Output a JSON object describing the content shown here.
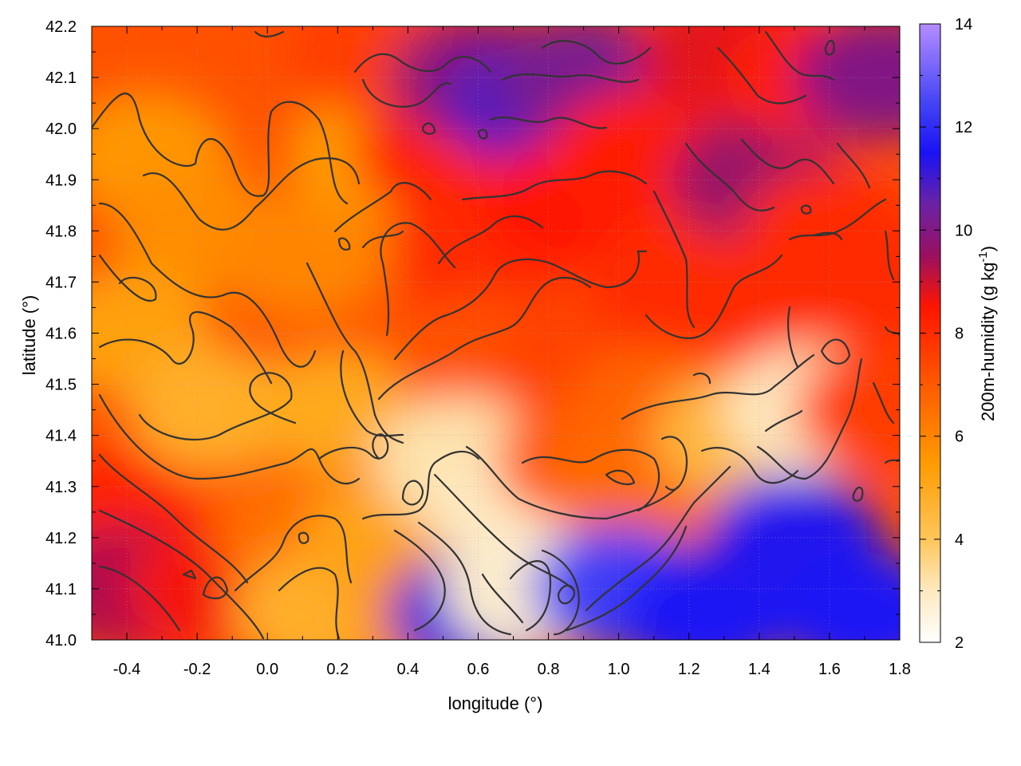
{
  "chart_data": {
    "type": "heatmap",
    "title": "",
    "xlabel": "longitude (°)",
    "ylabel": "latitude (°)",
    "colorbar_label": "200m-humidity (g kg",
    "colorbar_label_sup": "-1",
    "colorbar_label_end": ")",
    "xlim": [
      -0.5,
      1.8
    ],
    "ylim": [
      41.0,
      42.2
    ],
    "zlim": [
      2,
      14
    ],
    "xticks": [
      -0.4,
      -0.2,
      0.0,
      0.2,
      0.4,
      0.6,
      0.8,
      1.0,
      1.2,
      1.4,
      1.6,
      1.8
    ],
    "xtick_labels": [
      "-0.4",
      "-0.2",
      "0.0",
      "0.2",
      "0.4",
      "0.6",
      "0.8",
      "1.0",
      "1.2",
      "1.4",
      "1.6",
      "1.8"
    ],
    "yticks": [
      41.0,
      41.1,
      41.2,
      41.3,
      41.4,
      41.5,
      41.6,
      41.7,
      41.8,
      41.9,
      42.0,
      42.1,
      42.2
    ],
    "ytick_labels": [
      "41.0",
      "41.1",
      "41.2",
      "41.3",
      "41.4",
      "41.5",
      "41.6",
      "41.7",
      "41.8",
      "41.9",
      "42.0",
      "42.1",
      "42.2"
    ],
    "cbticks": [
      2,
      4,
      6,
      8,
      10,
      12,
      14
    ],
    "cbtick_labels": [
      "2",
      "4",
      "6",
      "8",
      "10",
      "12",
      "14"
    ],
    "grid": true,
    "colormap": [
      {
        "v": 2,
        "color": "#ffffff"
      },
      {
        "v": 3,
        "color": "#fde9c0"
      },
      {
        "v": 4,
        "color": "#ffc65a"
      },
      {
        "v": 5.5,
        "color": "#ff9a00"
      },
      {
        "v": 7,
        "color": "#ff5a00"
      },
      {
        "v": 8.5,
        "color": "#ff1500"
      },
      {
        "v": 9.5,
        "color": "#9a1060"
      },
      {
        "v": 10.5,
        "color": "#6a22a5"
      },
      {
        "v": 11.5,
        "color": "#1a12f5"
      },
      {
        "v": 12.5,
        "color": "#4646f5"
      },
      {
        "v": 14,
        "color": "#b58cff"
      }
    ],
    "field_regions": [
      {
        "lon": -0.35,
        "lat": 41.95,
        "value": 5.6
      },
      {
        "lon": -0.2,
        "lat": 41.8,
        "value": 5.8
      },
      {
        "lon": -0.4,
        "lat": 41.6,
        "value": 5.3
      },
      {
        "lon": -0.15,
        "lat": 41.45,
        "value": 4.8
      },
      {
        "lon": -0.45,
        "lat": 41.25,
        "value": 8.2
      },
      {
        "lon": -0.4,
        "lat": 41.1,
        "value": 9.3
      },
      {
        "lon": -0.15,
        "lat": 41.1,
        "value": 8.6
      },
      {
        "lon": 0.1,
        "lat": 41.2,
        "value": 6.5
      },
      {
        "lon": 0.15,
        "lat": 41.05,
        "value": 4.8
      },
      {
        "lon": 0.1,
        "lat": 41.75,
        "value": 6.0
      },
      {
        "lon": 0.2,
        "lat": 41.45,
        "value": 5.0
      },
      {
        "lon": 0.35,
        "lat": 41.2,
        "value": 5.2
      },
      {
        "lon": 0.3,
        "lat": 41.95,
        "value": 5.5
      },
      {
        "lon": 0.3,
        "lat": 42.15,
        "value": 7.6
      },
      {
        "lon": 0.5,
        "lat": 41.95,
        "value": 8.2
      },
      {
        "lon": 0.6,
        "lat": 41.75,
        "value": 8.0
      },
      {
        "lon": 0.6,
        "lat": 41.55,
        "value": 7.2
      },
      {
        "lon": 0.55,
        "lat": 41.35,
        "value": 3.2
      },
      {
        "lon": 0.7,
        "lat": 41.25,
        "value": 3.0
      },
      {
        "lon": 0.5,
        "lat": 41.05,
        "value": 5.8
      },
      {
        "lon": 0.6,
        "lat": 41.05,
        "value": 11.2
      },
      {
        "lon": 0.75,
        "lat": 41.1,
        "value": 2.8
      },
      {
        "lon": 0.6,
        "lat": 42.1,
        "value": 9.8
      },
      {
        "lon": 0.75,
        "lat": 42.05,
        "value": 10.8
      },
      {
        "lon": 0.9,
        "lat": 42.1,
        "value": 10.2
      },
      {
        "lon": 0.85,
        "lat": 41.85,
        "value": 8.5
      },
      {
        "lon": 0.9,
        "lat": 41.55,
        "value": 7.5
      },
      {
        "lon": 0.9,
        "lat": 41.35,
        "value": 7.0
      },
      {
        "lon": 1.05,
        "lat": 41.95,
        "value": 8.3
      },
      {
        "lon": 1.15,
        "lat": 41.7,
        "value": 8.0
      },
      {
        "lon": 1.1,
        "lat": 41.45,
        "value": 6.8
      },
      {
        "lon": 1.05,
        "lat": 41.3,
        "value": 6.6
      },
      {
        "lon": 1.0,
        "lat": 41.1,
        "value": 12.4
      },
      {
        "lon": 1.25,
        "lat": 41.05,
        "value": 11.6
      },
      {
        "lon": 1.3,
        "lat": 42.15,
        "value": 8.8
      },
      {
        "lon": 1.4,
        "lat": 41.9,
        "value": 9.6
      },
      {
        "lon": 1.35,
        "lat": 41.65,
        "value": 8.0
      },
      {
        "lon": 1.35,
        "lat": 41.4,
        "value": 4.5
      },
      {
        "lon": 1.5,
        "lat": 41.2,
        "value": 11.4
      },
      {
        "lon": 1.55,
        "lat": 42.1,
        "value": 8.3
      },
      {
        "lon": 1.6,
        "lat": 41.8,
        "value": 8.0
      },
      {
        "lon": 1.55,
        "lat": 41.45,
        "value": 3.0
      },
      {
        "lon": 1.7,
        "lat": 41.05,
        "value": 11.6
      },
      {
        "lon": 1.75,
        "lat": 42.1,
        "value": 10.0
      },
      {
        "lon": 1.75,
        "lat": 41.7,
        "value": 8.0
      },
      {
        "lon": 1.75,
        "lat": 41.45,
        "value": 7.6
      }
    ]
  }
}
